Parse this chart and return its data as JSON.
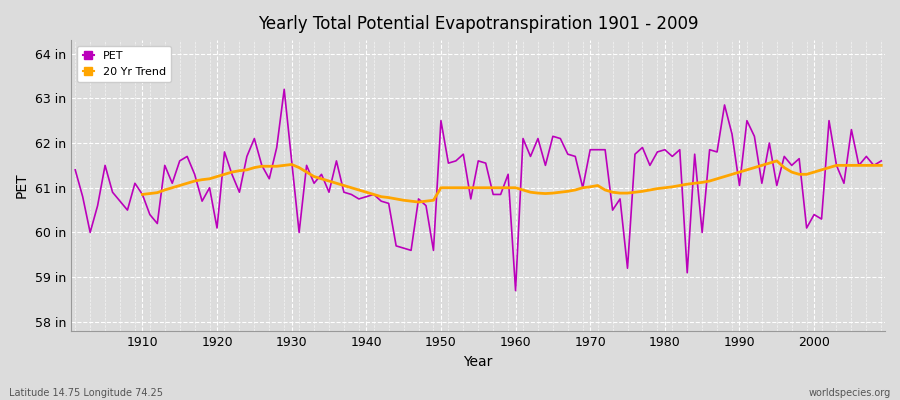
{
  "title": "Yearly Total Potential Evapotranspiration 1901 - 2009",
  "xlabel": "Year",
  "ylabel": "PET",
  "footnote_left": "Latitude 14.75 Longitude 74.25",
  "footnote_right": "worldspecies.org",
  "pet_color": "#BB00BB",
  "trend_color": "#FFA500",
  "background_color": "#DCDCDC",
  "grid_color": "#FFFFFF",
  "ylim": [
    57.8,
    64.3
  ],
  "yticks": [
    58,
    59,
    60,
    61,
    62,
    63,
    64
  ],
  "ytick_labels": [
    "58 in",
    "59 in",
    "60 in",
    "61 in",
    "62 in",
    "63 in",
    "64 in"
  ],
  "xlim": [
    1900.5,
    2009.5
  ],
  "xticks": [
    1910,
    1920,
    1930,
    1940,
    1950,
    1960,
    1970,
    1980,
    1990,
    2000
  ],
  "years": [
    1901,
    1902,
    1903,
    1904,
    1905,
    1906,
    1907,
    1908,
    1909,
    1910,
    1911,
    1912,
    1913,
    1914,
    1915,
    1916,
    1917,
    1918,
    1919,
    1920,
    1921,
    1922,
    1923,
    1924,
    1925,
    1926,
    1927,
    1928,
    1929,
    1930,
    1931,
    1932,
    1933,
    1934,
    1935,
    1936,
    1937,
    1938,
    1939,
    1940,
    1941,
    1942,
    1943,
    1944,
    1945,
    1946,
    1947,
    1948,
    1949,
    1950,
    1951,
    1952,
    1953,
    1954,
    1955,
    1956,
    1957,
    1958,
    1959,
    1960,
    1961,
    1962,
    1963,
    1964,
    1965,
    1966,
    1967,
    1968,
    1969,
    1970,
    1971,
    1972,
    1973,
    1974,
    1975,
    1976,
    1977,
    1978,
    1979,
    1980,
    1981,
    1982,
    1983,
    1984,
    1985,
    1986,
    1987,
    1988,
    1989,
    1990,
    1991,
    1992,
    1993,
    1994,
    1995,
    1996,
    1997,
    1998,
    1999,
    2000,
    2001,
    2002,
    2003,
    2004,
    2005,
    2006,
    2007,
    2008,
    2009
  ],
  "pet_values": [
    61.4,
    60.8,
    60.0,
    60.6,
    61.5,
    60.9,
    60.7,
    60.5,
    61.1,
    60.85,
    60.4,
    60.2,
    61.5,
    61.1,
    61.6,
    61.7,
    61.3,
    60.7,
    61.0,
    60.1,
    61.8,
    61.3,
    60.9,
    61.7,
    62.1,
    61.5,
    61.2,
    61.9,
    63.2,
    61.6,
    60.0,
    61.5,
    61.1,
    61.3,
    60.9,
    61.6,
    60.9,
    60.85,
    60.75,
    60.8,
    60.85,
    60.7,
    60.65,
    59.7,
    59.65,
    59.6,
    60.75,
    60.6,
    59.6,
    62.5,
    61.55,
    61.6,
    61.75,
    60.75,
    61.6,
    61.55,
    60.85,
    60.85,
    61.3,
    58.7,
    62.1,
    61.7,
    62.1,
    61.5,
    62.15,
    62.1,
    61.75,
    61.7,
    61.0,
    61.85,
    61.85,
    61.85,
    60.5,
    60.75,
    59.2,
    61.75,
    61.9,
    61.5,
    61.8,
    61.85,
    61.7,
    61.85,
    59.1,
    61.75,
    60.0,
    61.85,
    61.8,
    62.85,
    62.2,
    61.05,
    62.5,
    62.15,
    61.1,
    62.0,
    61.05,
    61.7,
    61.5,
    61.65,
    60.1,
    60.4,
    60.3,
    62.5,
    61.5,
    61.1,
    62.3,
    61.5,
    61.7,
    61.5,
    61.6
  ],
  "trend_values": [
    null,
    null,
    null,
    null,
    null,
    null,
    null,
    null,
    null,
    60.85,
    60.87,
    60.89,
    60.95,
    61.0,
    61.05,
    61.1,
    61.15,
    61.18,
    61.2,
    61.25,
    61.3,
    61.35,
    61.38,
    61.4,
    61.45,
    61.48,
    61.48,
    61.48,
    61.5,
    61.52,
    61.45,
    61.35,
    61.25,
    61.2,
    61.15,
    61.1,
    61.05,
    61.0,
    60.95,
    60.9,
    60.85,
    60.8,
    60.78,
    60.75,
    60.72,
    60.7,
    60.68,
    60.7,
    60.72,
    61.0,
    61.0,
    61.0,
    61.0,
    61.0,
    61.0,
    61.0,
    61.0,
    61.0,
    61.0,
    61.0,
    60.95,
    60.9,
    60.88,
    60.87,
    60.88,
    60.9,
    60.92,
    60.95,
    61.0,
    61.02,
    61.05,
    60.95,
    60.9,
    60.88,
    60.88,
    60.9,
    60.92,
    60.95,
    60.98,
    61.0,
    61.02,
    61.05,
    61.08,
    61.1,
    61.12,
    61.15,
    61.2,
    61.25,
    61.3,
    61.35,
    61.4,
    61.45,
    61.5,
    61.55,
    61.6,
    61.45,
    61.35,
    61.3,
    61.3,
    61.35,
    61.4,
    61.45,
    61.5,
    61.5,
    61.5,
    61.5,
    61.5,
    61.5,
    61.5
  ]
}
